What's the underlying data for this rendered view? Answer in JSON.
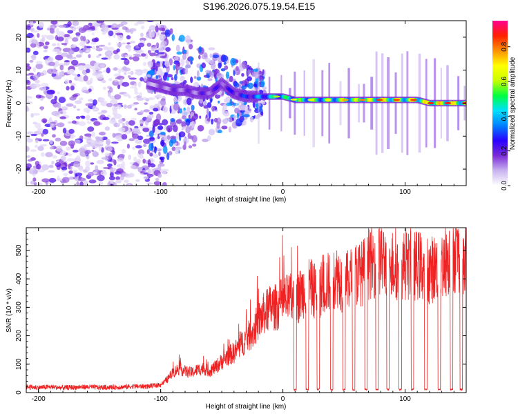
{
  "title": "S196.2026.075.19.54.E15",
  "chart_data": [
    {
      "type": "heatmap",
      "title": "",
      "xlabel": "Height of straight line (km)",
      "ylabel": "Frequency (Hz)",
      "xlim": [
        -210,
        150
      ],
      "ylim": [
        -25,
        25
      ],
      "xticks": [
        -200,
        -100,
        0,
        100
      ],
      "yticks": [
        -20,
        -10,
        0,
        10,
        20
      ],
      "colorbar": {
        "label": "Normalized spectral amplitude",
        "range": [
          0.0,
          0.95
        ],
        "ticks": [
          0.0,
          0.2,
          0.4,
          0.6,
          0.8
        ],
        "tick_labels": [
          "0.0",
          "0.2",
          "0.4",
          "0.6",
          "0.8"
        ],
        "colors": [
          "#ffffff",
          "#c9b3f0",
          "#7a2bd6",
          "#2a00ff",
          "#0080ff",
          "#00e0ff",
          "#00ff40",
          "#c8ff00",
          "#ffff00",
          "#ff9000",
          "#ff2000",
          "#ff0090"
        ]
      },
      "ridge": {
        "description_free": true,
        "x": [
          -110,
          -100,
          -90,
          -80,
          -70,
          -60,
          -50,
          -40,
          -30,
          -20,
          -10,
          0,
          10,
          20,
          30,
          40,
          50,
          60,
          70,
          80,
          90,
          100,
          110,
          120,
          130,
          140,
          150
        ],
        "y": [
          6,
          5,
          4,
          4,
          3,
          3,
          6,
          3,
          2,
          2,
          2,
          2,
          1,
          1,
          1,
          1,
          1,
          1,
          1,
          1,
          1,
          1,
          1,
          0,
          0,
          0,
          0
        ],
        "amplitude": [
          0.15,
          0.2,
          0.25,
          0.25,
          0.25,
          0.3,
          0.3,
          0.35,
          0.4,
          0.5,
          0.6,
          0.65,
          0.7,
          0.75,
          0.7,
          0.75,
          0.8,
          0.8,
          0.85,
          0.9,
          0.9,
          0.85,
          0.9,
          0.9,
          0.95,
          0.9,
          0.9
        ]
      }
    },
    {
      "type": "line",
      "title": "",
      "xlabel": "Height of straight line (km)",
      "ylabel": "SNR (10 * v/v)",
      "xlim": [
        -210,
        150
      ],
      "ylim": [
        0,
        580
      ],
      "xticks": [
        -200,
        -100,
        0,
        100
      ],
      "yticks": [
        0,
        100,
        200,
        300,
        400,
        500
      ],
      "color": "#ee2222",
      "series": [
        {
          "name": "SNR",
          "x": [
            -210,
            -200,
            -190,
            -180,
            -170,
            -160,
            -150,
            -140,
            -130,
            -120,
            -110,
            -100,
            -95,
            -90,
            -85,
            -80,
            -75,
            -70,
            -65,
            -60,
            -55,
            -50,
            -45,
            -40,
            -35,
            -30,
            -25,
            -20,
            -15,
            -10,
            -5,
            0,
            5,
            10,
            15,
            20,
            25,
            30,
            35,
            40,
            45,
            50,
            55,
            60,
            65,
            70,
            75,
            80,
            85,
            90,
            95,
            100,
            105,
            110,
            115,
            120,
            125,
            130,
            135,
            140,
            145,
            150
          ],
          "values": [
            20,
            18,
            20,
            17,
            19,
            20,
            18,
            19,
            20,
            22,
            22,
            28,
            45,
            70,
            85,
            75,
            70,
            80,
            85,
            75,
            90,
            110,
            130,
            140,
            165,
            190,
            210,
            250,
            280,
            300,
            300,
            320,
            330,
            320,
            350,
            380,
            360,
            360,
            380,
            400,
            410,
            380,
            400,
            420,
            420,
            450,
            460,
            470,
            460,
            450,
            440,
            450,
            440,
            450,
            440,
            430,
            440,
            450,
            470,
            480,
            480,
            420
          ],
          "dropouts_x": [
            10,
            20,
            29,
            40,
            50,
            58,
            68,
            77,
            86,
            96,
            106,
            117,
            128,
            138,
            146
          ],
          "dropout_value": 8
        }
      ]
    }
  ]
}
